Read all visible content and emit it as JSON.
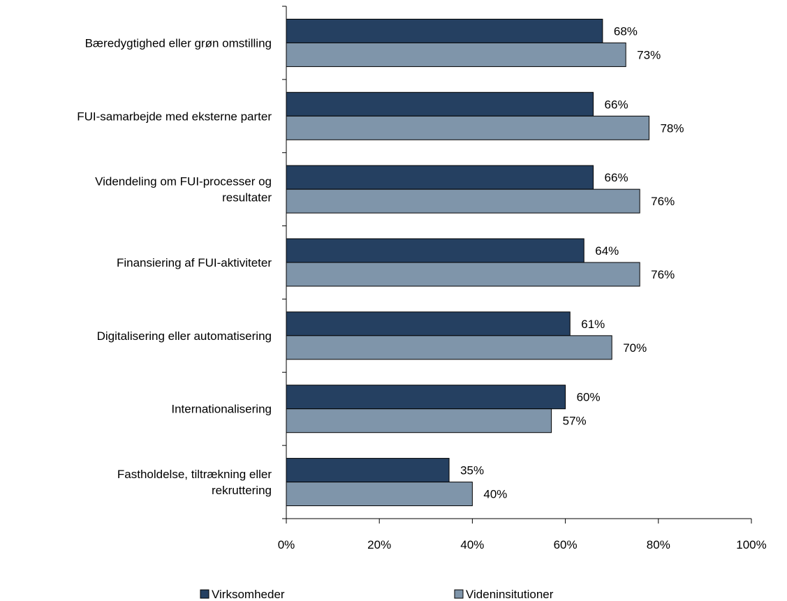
{
  "chart_data": {
    "type": "bar",
    "orientation": "horizontal",
    "categories": [
      [
        "Bæredygtighed eller grøn omstilling"
      ],
      [
        "FUI-samarbejde med eksterne parter"
      ],
      [
        "Videndeling om FUI-processer og",
        "resultater"
      ],
      [
        "Finansiering af FUI-aktiviteter"
      ],
      [
        "Digitalisering eller automatisering"
      ],
      [
        "Internationalisering"
      ],
      [
        "Fastholdelse, tiltrækning eller",
        "rekruttering"
      ]
    ],
    "series": [
      {
        "name": "Virksomheder",
        "color": "#254061",
        "values": [
          68,
          66,
          66,
          64,
          61,
          60,
          35
        ],
        "labels": [
          "68%",
          "66%",
          "66%",
          "64%",
          "61%",
          "60%",
          "35%"
        ]
      },
      {
        "name": "Videninsitutioner",
        "color": "#7f95aa",
        "values": [
          73,
          78,
          76,
          76,
          70,
          57,
          40
        ],
        "labels": [
          "73%",
          "78%",
          "76%",
          "76%",
          "70%",
          "57%",
          "40%"
        ]
      }
    ],
    "xlim": [
      0,
      100
    ],
    "xticks": [
      0,
      20,
      40,
      60,
      80,
      100
    ],
    "xtick_labels": [
      "0%",
      "20%",
      "40%",
      "60%",
      "80%",
      "100%"
    ],
    "grid": false,
    "legend_position": "bottom"
  }
}
